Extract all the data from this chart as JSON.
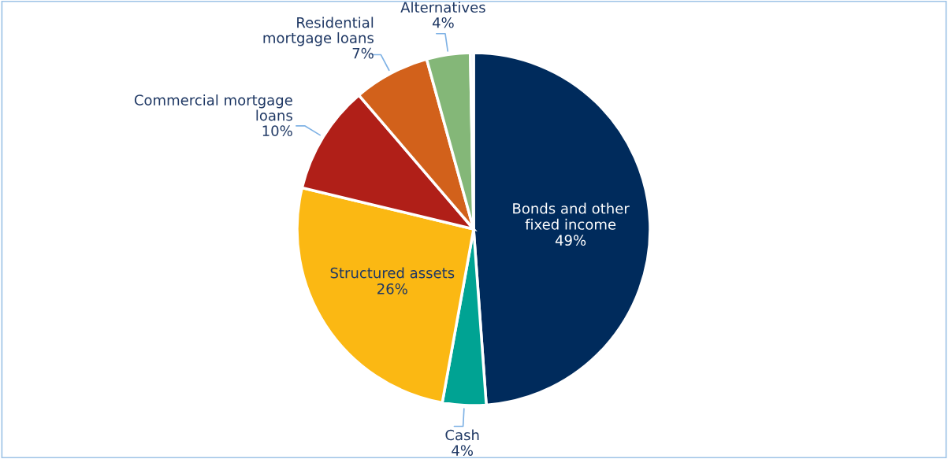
{
  "chart_data": {
    "type": "pie",
    "categories": [
      "Bonds and other\nfixed income",
      "Cash",
      "Structured assets",
      "Commercial mortgage\nloans",
      "Residential\nmortgage loans",
      "Alternatives",
      null
    ],
    "values": [
      49,
      4,
      26,
      10,
      7,
      4,
      0.3
    ],
    "colors": [
      "#002b5c",
      "#00a393",
      "#fbb813",
      "#b01f18",
      "#d2611b",
      "#84b778",
      "#e8eef4"
    ],
    "value_labels": [
      "49%",
      "4%",
      "26%",
      "10%",
      "7%",
      "4%",
      null
    ],
    "legend": false
  }
}
